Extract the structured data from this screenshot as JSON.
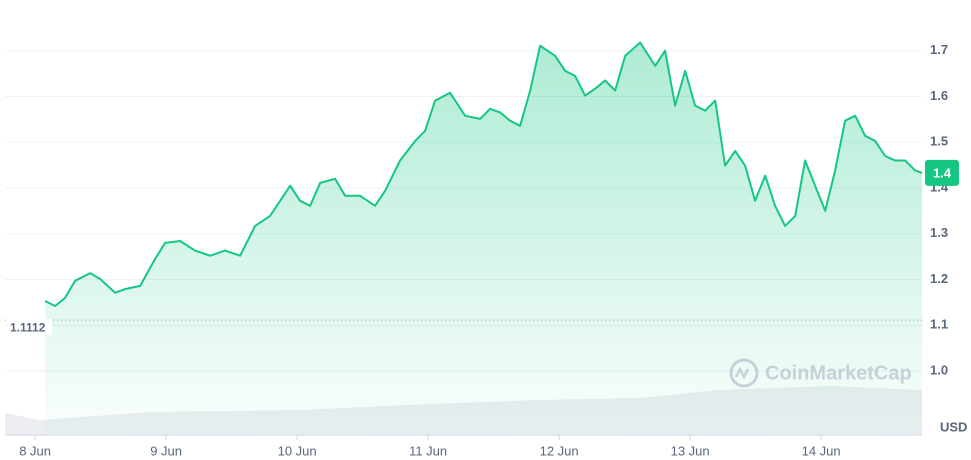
{
  "chart_data": {
    "type": "line",
    "x": [
      8.076,
      8.153,
      8.229,
      8.305,
      8.42,
      8.496,
      8.611,
      8.687,
      8.802,
      8.916,
      8.992,
      9.107,
      9.221,
      9.336,
      9.45,
      9.565,
      9.679,
      9.794,
      9.947,
      10.023,
      10.099,
      10.176,
      10.29,
      10.366,
      10.481,
      10.595,
      10.672,
      10.786,
      10.901,
      10.977,
      11.053,
      11.168,
      11.282,
      11.397,
      11.473,
      11.55,
      11.626,
      11.702,
      11.779,
      11.855,
      11.969,
      12.046,
      12.122,
      12.198,
      12.275,
      12.351,
      12.427,
      12.504,
      12.618,
      12.733,
      12.809,
      12.885,
      12.962,
      13.038,
      13.115,
      13.191,
      13.267,
      13.344,
      13.42,
      13.496,
      13.573,
      13.649,
      13.725,
      13.802,
      13.878,
      13.954,
      14.031,
      14.107,
      14.183,
      14.26,
      14.336,
      14.412,
      14.489,
      14.565,
      14.641,
      14.718,
      14.771
    ],
    "series": [
      {
        "color": "#16c784",
        "values": [
          1.153,
          1.142,
          1.16,
          1.197,
          1.214,
          1.201,
          1.171,
          1.179,
          1.186,
          1.245,
          1.28,
          1.284,
          1.263,
          1.252,
          1.263,
          1.252,
          1.317,
          1.339,
          1.405,
          1.372,
          1.361,
          1.411,
          1.42,
          1.383,
          1.383,
          1.361,
          1.394,
          1.46,
          1.503,
          1.525,
          1.591,
          1.608,
          1.558,
          1.551,
          1.573,
          1.565,
          1.547,
          1.536,
          1.613,
          1.711,
          1.689,
          1.656,
          1.645,
          1.602,
          1.617,
          1.635,
          1.613,
          1.689,
          1.718,
          1.667,
          1.7,
          1.58,
          1.656,
          1.58,
          1.569,
          1.591,
          1.449,
          1.481,
          1.449,
          1.372,
          1.427,
          1.361,
          1.317,
          1.339,
          1.46,
          1.405,
          1.35,
          1.438,
          1.547,
          1.558,
          1.514,
          1.503,
          1.47,
          1.46,
          1.46,
          1.438,
          1.433
        ]
      }
    ],
    "xlim": [
      7.77,
      14.77
    ],
    "xticks": [
      {
        "value": 8,
        "label": "8 Jun"
      },
      {
        "value": 9,
        "label": "9 Jun"
      },
      {
        "value": 10,
        "label": "10 Jun"
      },
      {
        "value": 11,
        "label": "11 Jun"
      },
      {
        "value": 12,
        "label": "12 Jun"
      },
      {
        "value": 13,
        "label": "13 Jun"
      },
      {
        "value": 14,
        "label": "14 Jun"
      }
    ],
    "ylim": [
      0.86,
      1.8
    ],
    "yticks": [
      {
        "value": 1,
        "label": "1.0"
      },
      1.1,
      1.2,
      1.3,
      1.4,
      1.5,
      1.6,
      1.7
    ],
    "y_unit": "USD",
    "reference_line": {
      "value": 1.1112,
      "label": "1.1112"
    },
    "current_price_label": "1.4",
    "watermark": "CoinMarketCap",
    "grid": true
  }
}
